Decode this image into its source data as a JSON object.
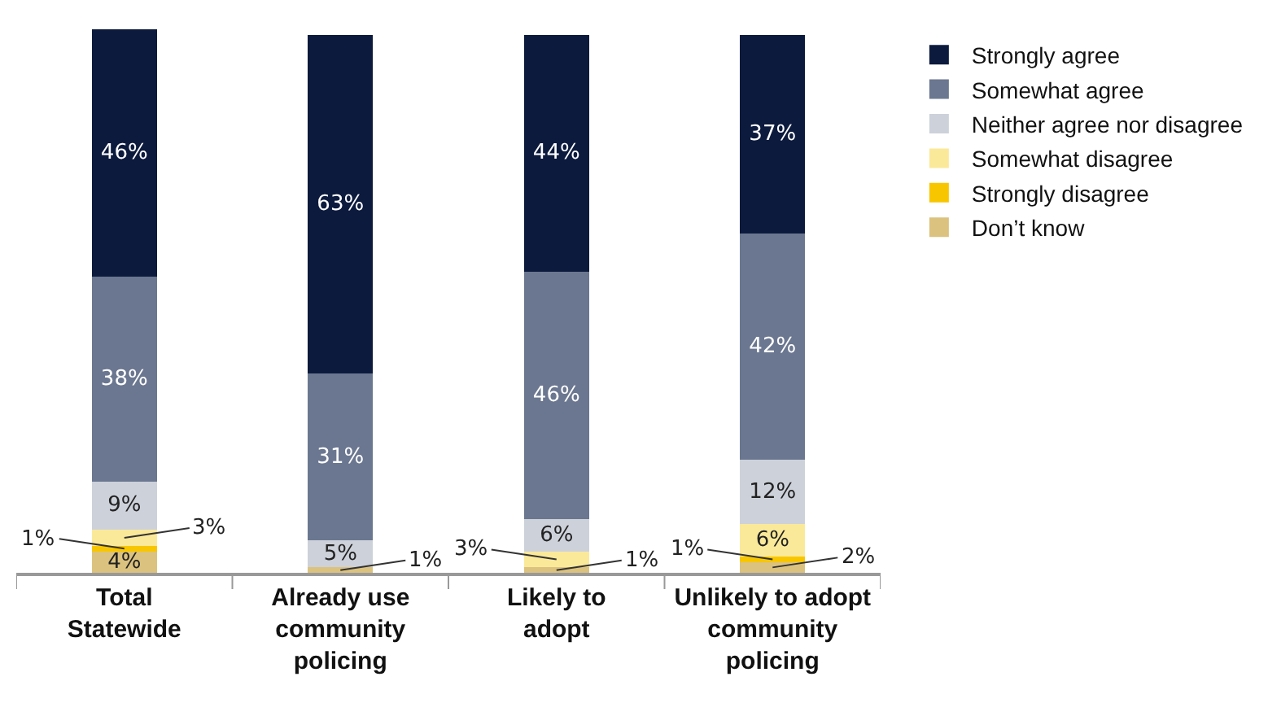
{
  "chart_data": {
    "type": "bar",
    "stacked": true,
    "categories": [
      "Total\nStatewide",
      "Already use\ncommunity\npolicing",
      "Likely to\nadopt",
      "Unlikely to adopt\ncommunity\npolicing"
    ],
    "series": [
      {
        "name": "Don’t know",
        "color": "#dbc27e",
        "values": [
          4,
          1,
          1,
          2
        ],
        "value_labels": [
          "4%",
          "1%",
          "1%",
          "2%"
        ]
      },
      {
        "name": "Strongly disagree",
        "color": "#f8c600",
        "values": [
          1,
          0,
          0,
          1
        ],
        "value_labels": [
          "1%",
          null,
          null,
          "1%"
        ]
      },
      {
        "name": "Somewhat disagree",
        "color": "#fbe99a",
        "values": [
          3,
          0,
          3,
          6
        ],
        "value_labels": [
          "3%",
          null,
          "3%",
          "6%"
        ]
      },
      {
        "name": "Neither agree nor disagree",
        "color": "#cdd1da",
        "values": [
          9,
          5,
          6,
          12
        ],
        "value_labels": [
          "9%",
          "5%",
          "6%",
          "12%"
        ]
      },
      {
        "name": "Somewhat agree",
        "color": "#6b7790",
        "values": [
          38,
          31,
          46,
          42
        ],
        "value_labels": [
          "38%",
          "31%",
          "46%",
          "42%"
        ]
      },
      {
        "name": "Strongly agree",
        "color": "#0c1a3d",
        "values": [
          46,
          63,
          44,
          37
        ],
        "value_labels": [
          "46%",
          "63%",
          "44%",
          "37%"
        ]
      }
    ],
    "legend": "right",
    "grid": false
  }
}
